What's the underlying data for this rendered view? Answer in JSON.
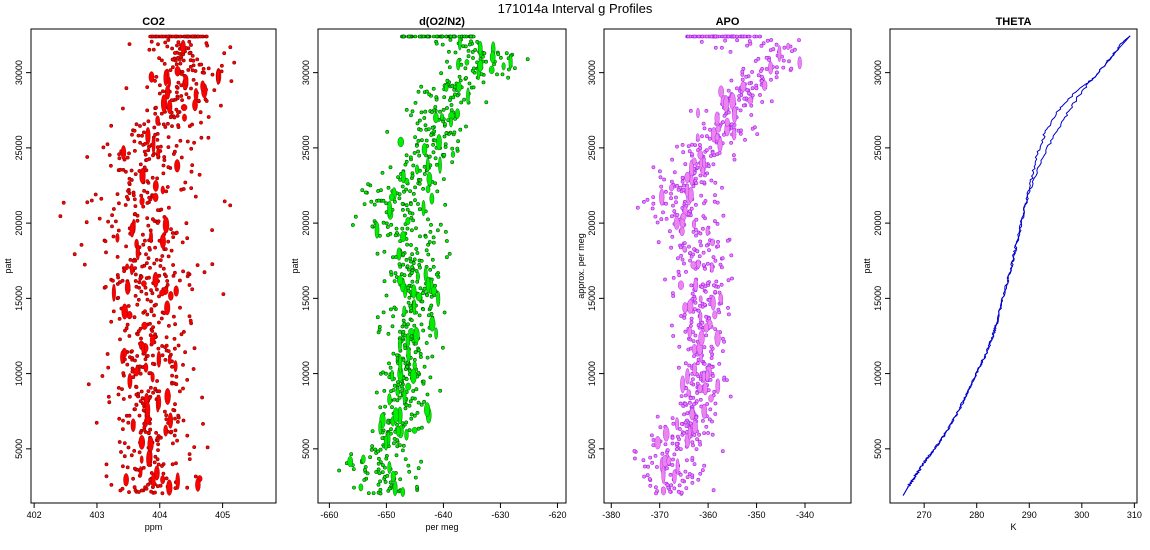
{
  "figure_title": "171014a   Interval g Profiles",
  "colors": {
    "co2": "#ff0000",
    "co2_edge": "#8b0000",
    "o2n2": "#00ee00",
    "o2n2_edge": "#005500",
    "apo": "#ee82ee",
    "apo_edge": "#a020f0",
    "theta": "#0000cc"
  },
  "chart_data": [
    {
      "type": "scatter",
      "title": "CO2",
      "xlabel": "ppm",
      "ylabel": "patt",
      "xlim": [
        401.95,
        405.85
      ],
      "ylim": [
        1400,
        32900
      ],
      "xticks": [
        402,
        403,
        404,
        405
      ],
      "xtick_labels": [
        "402",
        "403",
        "404",
        "405"
      ],
      "yticks": [
        5000,
        10000,
        15000,
        20000,
        25000,
        30000
      ],
      "ytick_labels": [
        "5000",
        "10000",
        "15000",
        "20000",
        "25000",
        "30000"
      ],
      "profile": {
        "y": [
          2000,
          4000,
          6000,
          8000,
          10000,
          12000,
          14000,
          16000,
          18000,
          20000,
          22000,
          24000,
          26000,
          28000,
          30000,
          32400
        ],
        "x": [
          403.85,
          403.8,
          403.85,
          403.85,
          403.8,
          403.8,
          403.85,
          403.8,
          403.7,
          403.75,
          403.8,
          403.9,
          404.0,
          404.3,
          404.4,
          404.3
        ],
        "spread": [
          0.3,
          0.35,
          0.3,
          0.3,
          0.3,
          0.3,
          0.32,
          0.4,
          0.45,
          0.45,
          0.45,
          0.4,
          0.35,
          0.35,
          0.35,
          0.35
        ]
      }
    },
    {
      "type": "scatter",
      "title": "d(O2/N2)",
      "xlabel": "per meg",
      "ylabel": "patt",
      "xlim": [
        -662,
        -618.5
      ],
      "ylim": [
        1400,
        32900
      ],
      "xticks": [
        -660,
        -650,
        -640,
        -630,
        -620
      ],
      "xtick_labels": [
        "-660",
        "-650",
        "-640",
        "-630",
        "-620"
      ],
      "yticks": [
        5000,
        10000,
        15000,
        20000,
        25000,
        30000
      ],
      "ytick_labels": [
        "5000",
        "10000",
        "15000",
        "20000",
        "25000",
        "30000"
      ],
      "profile": {
        "y": [
          2000,
          3000,
          4500,
          6000,
          8000,
          10000,
          12000,
          14000,
          16000,
          18000,
          20000,
          21500,
          23000,
          25000,
          27000,
          29000,
          30500,
          31500,
          32400
        ],
        "x": [
          -650,
          -650,
          -652,
          -648,
          -647,
          -647,
          -646,
          -645,
          -645,
          -645,
          -647,
          -648,
          -645,
          -642,
          -641,
          -638,
          -632,
          -633,
          -641
        ],
        "spread": [
          2.5,
          3,
          3.5,
          2,
          2,
          2,
          2,
          2.5,
          2.5,
          2.5,
          4,
          4,
          3,
          3,
          3,
          3,
          3,
          3,
          5
        ]
      }
    },
    {
      "type": "scatter",
      "title": "APO",
      "xlabel": "",
      "ylabel": "approx. per meg",
      "xlim": [
        -381.5,
        -330.5
      ],
      "ylim": [
        1400,
        32900
      ],
      "xticks": [
        -380,
        -370,
        -360,
        -350,
        -340
      ],
      "xtick_labels": [
        "-380",
        "-370",
        "-360",
        "-350",
        "-340"
      ],
      "yticks": [
        5000,
        10000,
        15000,
        20000,
        25000,
        30000
      ],
      "ytick_labels": [
        "5000",
        "10000",
        "15000",
        "20000",
        "25000",
        "30000"
      ],
      "profile": {
        "y": [
          2000,
          3000,
          4500,
          6000,
          8000,
          10000,
          12000,
          14000,
          16000,
          18000,
          20000,
          21500,
          23000,
          25000,
          27000,
          29000,
          30500,
          31500,
          32400
        ],
        "x": [
          -367,
          -367,
          -369,
          -364,
          -362,
          -362,
          -361,
          -361,
          -361,
          -362,
          -365,
          -367,
          -364,
          -359,
          -356,
          -352,
          -346,
          -347,
          -357
        ],
        "spread": [
          3,
          3.5,
          4,
          2.5,
          2.5,
          2.5,
          2.5,
          3,
          3,
          3,
          4.5,
          4.5,
          3.5,
          3,
          3,
          3,
          3,
          3,
          6
        ]
      }
    },
    {
      "type": "line",
      "title": "THETA",
      "xlabel": "K",
      "ylabel": "patt",
      "xlim": [
        263.5,
        310.5
      ],
      "ylim": [
        1400,
        32900
      ],
      "xticks": [
        270,
        280,
        290,
        300,
        310
      ],
      "xtick_labels": [
        "270",
        "280",
        "290",
        "300",
        "310"
      ],
      "yticks": [
        5000,
        10000,
        15000,
        20000,
        25000,
        30000
      ],
      "ytick_labels": [
        "5000",
        "10000",
        "15000",
        "20000",
        "25000",
        "30000"
      ],
      "series": [
        {
          "x": [
            266,
            267,
            268.5,
            270,
            272,
            274,
            276,
            278,
            280,
            282,
            283.5,
            285,
            286.5,
            287.5,
            288.5,
            289.5,
            291,
            293.5,
            296.5,
            299.5,
            302.5,
            305.5,
            308,
            309.2
          ],
          "y": [
            1900,
            2500,
            3300,
            4100,
            5000,
            6000,
            7200,
            8500,
            10000,
            11500,
            13000,
            15000,
            17000,
            18500,
            20000,
            21500,
            23000,
            25000,
            26900,
            28500,
            29800,
            31000,
            32100,
            32450
          ]
        },
        {
          "x": [
            266,
            267,
            268.5,
            270,
            272,
            274,
            276,
            278,
            280,
            282,
            283.5,
            285,
            286.5,
            287.5,
            288.5,
            289.5,
            290.5,
            291.5,
            293,
            295.5,
            298.5,
            302.5,
            306,
            309.2
          ],
          "y": [
            1900,
            2500,
            3300,
            4100,
            5000,
            6000,
            7200,
            8500,
            10000,
            11500,
            13000,
            15000,
            17000,
            18500,
            20000,
            21500,
            23000,
            24500,
            26000,
            27500,
            28600,
            29700,
            31200,
            32450
          ]
        }
      ]
    }
  ]
}
